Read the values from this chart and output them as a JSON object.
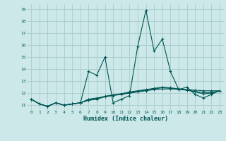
{
  "xlabel": "Humidex (Indice chaleur)",
  "background_color": "#cce8e8",
  "grid_color": "#aacccc",
  "line_color": "#005555",
  "xlim": [
    -0.5,
    23.5
  ],
  "ylim": [
    10.6,
    19.4
  ],
  "xticks": [
    0,
    1,
    2,
    3,
    4,
    5,
    6,
    7,
    8,
    9,
    10,
    11,
    12,
    13,
    14,
    15,
    16,
    17,
    18,
    19,
    20,
    21,
    22,
    23
  ],
  "yticks": [
    11,
    12,
    13,
    14,
    15,
    16,
    17,
    18,
    19
  ],
  "series": [
    [
      11.5,
      11.1,
      10.9,
      11.2,
      11.0,
      11.1,
      11.2,
      13.8,
      13.5,
      15.0,
      11.2,
      11.5,
      11.8,
      15.9,
      18.9,
      15.5,
      16.5,
      13.8,
      12.3,
      12.5,
      11.9,
      11.6,
      11.9,
      12.2
    ],
    [
      11.5,
      11.1,
      10.9,
      11.2,
      11.0,
      11.1,
      11.2,
      11.5,
      11.6,
      11.7,
      11.8,
      11.9,
      12.0,
      12.1,
      12.2,
      12.3,
      12.35,
      12.35,
      12.35,
      12.3,
      12.25,
      12.2,
      12.2,
      12.2
    ],
    [
      11.5,
      11.1,
      10.9,
      11.2,
      11.0,
      11.1,
      11.2,
      11.45,
      11.55,
      11.75,
      11.85,
      11.95,
      12.05,
      12.15,
      12.25,
      12.35,
      12.45,
      12.4,
      12.3,
      12.25,
      12.15,
      12.05,
      12.05,
      12.2
    ],
    [
      11.5,
      11.1,
      10.9,
      11.2,
      11.0,
      11.1,
      11.2,
      11.4,
      11.5,
      11.7,
      11.85,
      11.95,
      12.1,
      12.2,
      12.3,
      12.4,
      12.5,
      12.45,
      12.35,
      12.25,
      12.1,
      11.95,
      12.0,
      12.2
    ]
  ]
}
